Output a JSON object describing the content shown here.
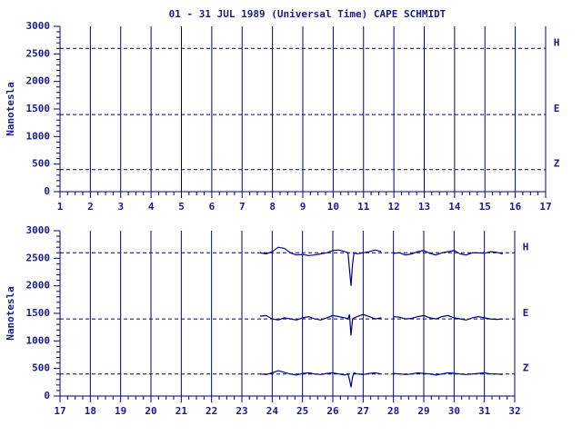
{
  "chart_data": [
    {
      "type": "line",
      "title": "01 - 31 JUL 1989 (Universal Time) CAPE SCHMIDT",
      "ylabel": "Nanotesla",
      "xlim": [
        1,
        17
      ],
      "xticks": [
        1,
        2,
        3,
        4,
        5,
        6,
        7,
        8,
        9,
        10,
        11,
        12,
        13,
        14,
        15,
        16,
        17
      ],
      "ylim": [
        0,
        3000
      ],
      "yticks": [
        0,
        500,
        1000,
        1500,
        2000,
        2500,
        3000
      ],
      "grid": true,
      "reference_lines": [
        {
          "value": 2600,
          "label": "H"
        },
        {
          "value": 1400,
          "label": "E"
        },
        {
          "value": 400,
          "label": "Z"
        }
      ]
    },
    {
      "type": "line",
      "ylabel": "Nanotesla",
      "xlim": [
        17,
        32
      ],
      "xticks": [
        17,
        18,
        19,
        20,
        21,
        22,
        23,
        24,
        25,
        26,
        27,
        28,
        29,
        30,
        31,
        32
      ],
      "ylim": [
        0,
        3000
      ],
      "yticks": [
        0,
        500,
        1000,
        1500,
        2000,
        2500,
        3000
      ],
      "grid": true,
      "reference_lines": [
        {
          "value": 2600,
          "label": "H"
        },
        {
          "value": 1400,
          "label": "E"
        },
        {
          "value": 400,
          "label": "Z"
        }
      ],
      "x": [
        23.6,
        23.8,
        24.0,
        24.2,
        24.4,
        24.6,
        24.8,
        25.0,
        25.2,
        25.4,
        25.6,
        25.8,
        26.0,
        26.2,
        26.4,
        26.5,
        26.55,
        26.6,
        26.65,
        26.7,
        26.8,
        27.0,
        27.2,
        27.4,
        27.6,
        27.8,
        28.0,
        28.2,
        28.4,
        28.6,
        28.8,
        29.0,
        29.2,
        29.4,
        29.6,
        29.8,
        30.0,
        30.2,
        30.4,
        30.6,
        30.8,
        31.0,
        31.2,
        31.4,
        31.6
      ],
      "series": [
        {
          "name": "H",
          "color": "#000080",
          "values": [
            2600,
            2580,
            2620,
            2700,
            2680,
            2600,
            2560,
            2570,
            2550,
            2560,
            2580,
            2600,
            2640,
            2650,
            2620,
            2600,
            2300,
            2000,
            2400,
            2600,
            2580,
            2600,
            2620,
            2650,
            2620,
            null,
            2590,
            2600,
            2560,
            2580,
            2620,
            2640,
            2590,
            2560,
            2600,
            2620,
            2640,
            2580,
            2560,
            2600,
            2600,
            2590,
            2620,
            2610,
            2580
          ]
        },
        {
          "name": "E",
          "color": "#000080",
          "values": [
            1450,
            1460,
            1400,
            1380,
            1420,
            1400,
            1380,
            1420,
            1440,
            1400,
            1380,
            1420,
            1460,
            1440,
            1420,
            1400,
            1480,
            1100,
            1400,
            1420,
            1440,
            1480,
            1440,
            1400,
            1420,
            null,
            1440,
            1430,
            1400,
            1410,
            1440,
            1460,
            1420,
            1400,
            1440,
            1460,
            1420,
            1400,
            1380,
            1420,
            1440,
            1420,
            1400,
            1390,
            1400
          ]
        },
        {
          "name": "Z",
          "color": "#000080",
          "values": [
            400,
            390,
            420,
            460,
            430,
            400,
            380,
            410,
            420,
            400,
            390,
            410,
            420,
            400,
            380,
            400,
            300,
            160,
            350,
            420,
            400,
            390,
            410,
            420,
            400,
            null,
            410,
            400,
            390,
            400,
            420,
            410,
            400,
            380,
            400,
            420,
            410,
            400,
            390,
            400,
            410,
            420,
            400,
            400,
            390
          ]
        }
      ]
    }
  ]
}
